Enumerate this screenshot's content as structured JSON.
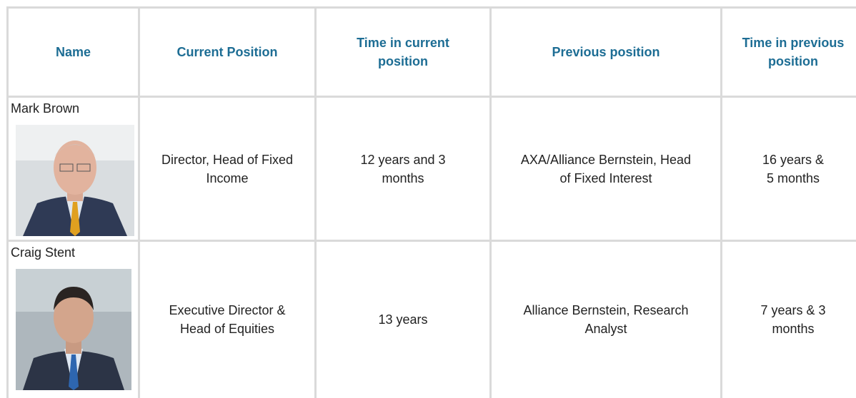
{
  "table": {
    "header": [
      "Name",
      "Current Position",
      "Time in current position",
      "Previous position",
      "Time in previous position"
    ],
    "rows": [
      [
        "Mark Brown",
        "Director, Head of Fixed Income",
        "12 years and 3 months",
        "AXA/Alliance Bernstein, Head of Fixed Interest",
        "16 years & 5 months"
      ],
      [
        "Craig Stent",
        "Executive Director & Head of Equities",
        "13 years",
        "Alliance Bernstein, Research Analyst",
        "7 years & 3 months"
      ]
    ]
  }
}
